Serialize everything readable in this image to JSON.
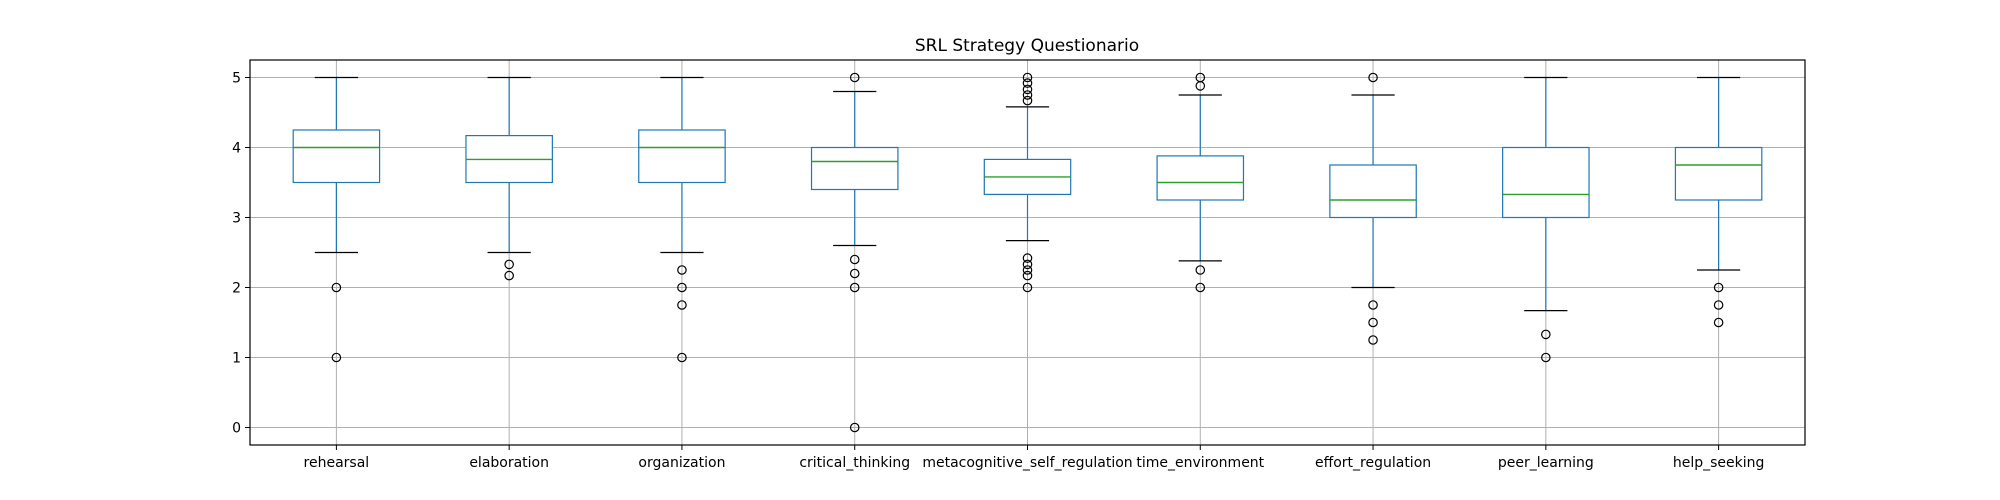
{
  "chart_data": {
    "type": "boxplot",
    "title": "SRL Strategy Questionario",
    "xlabel": "",
    "ylabel": "",
    "ylim": [
      -0.25,
      5.25
    ],
    "yticks": [
      0,
      1,
      2,
      3,
      4,
      5
    ],
    "grid": true,
    "colors": {
      "box": "#1f77b4",
      "median": "#2ca02c",
      "whisker": "#1f77b4",
      "cap": "#000000",
      "flier": "#000000",
      "grid": "#b0b0b0"
    },
    "categories": [
      "rehearsal",
      "elaboration",
      "organization",
      "critical_thinking",
      "metacognitive_self_regulation",
      "time_environment",
      "effort_regulation",
      "peer_learning",
      "help_seeking"
    ],
    "boxes": [
      {
        "q1": 3.5,
        "median": 4.0,
        "q3": 4.25,
        "whislo": 2.5,
        "whishi": 5.0,
        "fliers": [
          2.0,
          1.0
        ]
      },
      {
        "q1": 3.5,
        "median": 3.83,
        "q3": 4.17,
        "whislo": 2.5,
        "whishi": 5.0,
        "fliers": [
          2.33,
          2.17
        ]
      },
      {
        "q1": 3.5,
        "median": 4.0,
        "q3": 4.25,
        "whislo": 2.5,
        "whishi": 5.0,
        "fliers": [
          2.25,
          2.0,
          1.75,
          1.0
        ]
      },
      {
        "q1": 3.4,
        "median": 3.8,
        "q3": 4.0,
        "whislo": 2.6,
        "whishi": 4.8,
        "fliers": [
          5.0,
          2.4,
          2.2,
          2.0,
          0.0
        ]
      },
      {
        "q1": 3.33,
        "median": 3.58,
        "q3": 3.83,
        "whislo": 2.67,
        "whishi": 4.58,
        "fliers": [
          5.0,
          4.92,
          4.83,
          4.75,
          4.67,
          2.42,
          2.33,
          2.25,
          2.17,
          2.0
        ]
      },
      {
        "q1": 3.25,
        "median": 3.5,
        "q3": 3.88,
        "whislo": 2.38,
        "whishi": 4.75,
        "fliers": [
          5.0,
          4.88,
          2.25,
          2.0
        ]
      },
      {
        "q1": 3.0,
        "median": 3.25,
        "q3": 3.75,
        "whislo": 2.0,
        "whishi": 4.75,
        "fliers": [
          5.0,
          1.75,
          1.5,
          1.25
        ]
      },
      {
        "q1": 3.0,
        "median": 3.33,
        "q3": 4.0,
        "whislo": 1.67,
        "whishi": 5.0,
        "fliers": [
          1.33,
          1.0
        ]
      },
      {
        "q1": 3.25,
        "median": 3.75,
        "q3": 4.0,
        "whislo": 2.25,
        "whishi": 5.0,
        "fliers": [
          2.0,
          1.75,
          1.5
        ]
      }
    ]
  }
}
